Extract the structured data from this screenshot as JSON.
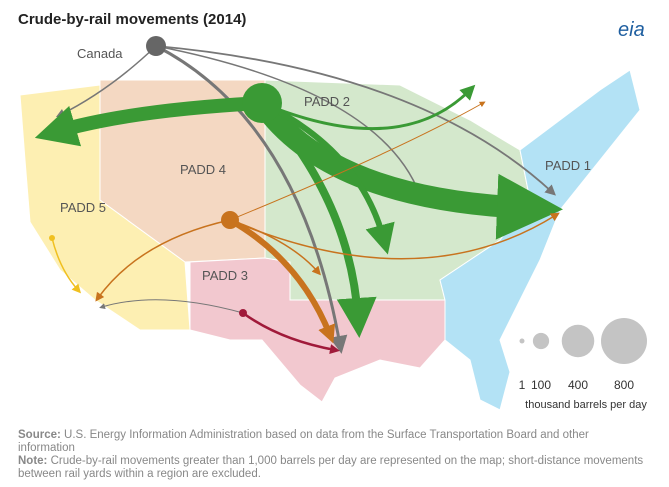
{
  "map": {
    "title": "Crude-by-rail movements (2014)",
    "logo": "eia",
    "regions": {
      "canada": "Canada",
      "padd1": "PADD 1",
      "padd2": "PADD 2",
      "padd3": "PADD 3",
      "padd4": "PADD 4",
      "padd5": "PADD 5"
    }
  },
  "legend": {
    "values": [
      1,
      100,
      400,
      800
    ],
    "unit": "thousand barrels per day"
  },
  "source": {
    "label": "Source:",
    "text": "U.S. Energy Information Administration based on data from the Surface Transportation Board and other information"
  },
  "note": {
    "label": "Note:",
    "text": "Crude-by-rail movements greater than 1,000 barrels per day are represented on the map; short-distance movements between rail yards within a region are excluded."
  }
}
